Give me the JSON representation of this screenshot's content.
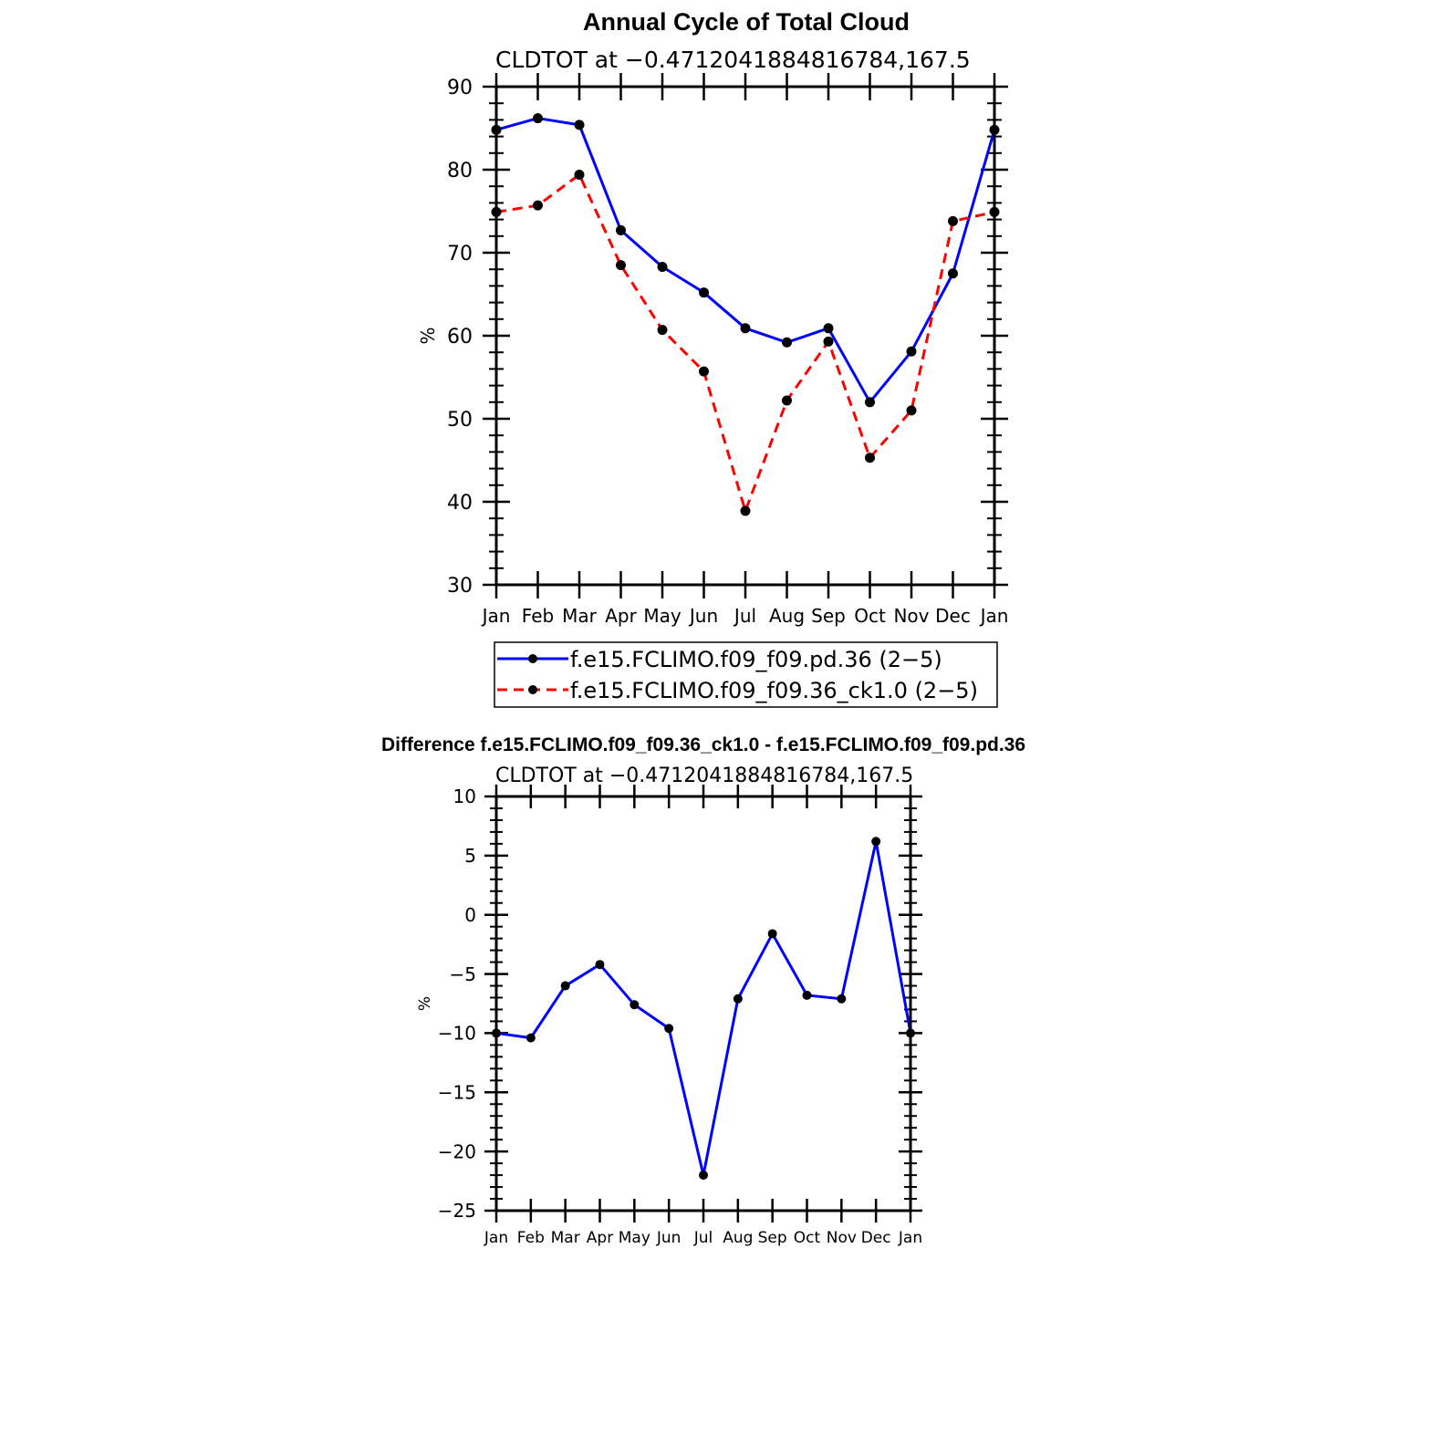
{
  "chart_data": [
    {
      "type": "line",
      "title": "Annual Cycle of Total Cloud",
      "subtitle": "CLDTOT at −0.4712041884816784,167.5",
      "xlabel": "",
      "ylabel": "%",
      "categories": [
        "Jan",
        "Feb",
        "Mar",
        "Apr",
        "May",
        "Jun",
        "Jul",
        "Aug",
        "Sep",
        "Oct",
        "Nov",
        "Dec",
        "Jan"
      ],
      "ylim": [
        30,
        90
      ],
      "yticks": [
        "30",
        "40",
        "50",
        "60",
        "70",
        "80",
        "90"
      ],
      "legend_position": "bottom",
      "series": [
        {
          "name": "f.e15.FCLIMO.f09_f09.pd.36 (2−5)",
          "color": "#0000ff",
          "dash": "solid",
          "values": [
            84.8,
            86.2,
            85.4,
            72.7,
            68.3,
            65.2,
            60.9,
            59.2,
            60.9,
            52.0,
            58.1,
            67.5,
            84.8
          ]
        },
        {
          "name": "f.e15.FCLIMO.f09_f09.36_ck1.0 (2−5)",
          "color": "#ff0000",
          "dash": "dashed",
          "values": [
            74.9,
            75.7,
            79.4,
            68.5,
            60.7,
            55.7,
            38.9,
            52.2,
            59.3,
            45.3,
            51.0,
            73.8,
            74.9
          ]
        }
      ]
    },
    {
      "type": "line",
      "title": "Difference f.e15.FCLIMO.f09_f09.36_ck1.0 - f.e15.FCLIMO.f09_f09.pd.36",
      "subtitle": "CLDTOT at −0.4712041884816784,167.5",
      "xlabel": "",
      "ylabel": "%",
      "categories": [
        "Jan",
        "Feb",
        "Mar",
        "Apr",
        "May",
        "Jun",
        "Jul",
        "Aug",
        "Sep",
        "Oct",
        "Nov",
        "Dec",
        "Jan"
      ],
      "ylim": [
        -25,
        10
      ],
      "yticks": [
        "−25",
        "−20",
        "−15",
        "−10",
        "−5",
        "0",
        "5",
        "10"
      ],
      "series": [
        {
          "name": "Difference",
          "color": "#0000ff",
          "dash": "solid",
          "values": [
            -10.0,
            -10.4,
            -6.0,
            -4.2,
            -7.6,
            -9.6,
            -22.0,
            -7.1,
            -1.6,
            -6.8,
            -7.1,
            6.2,
            -10.0
          ]
        }
      ]
    }
  ]
}
